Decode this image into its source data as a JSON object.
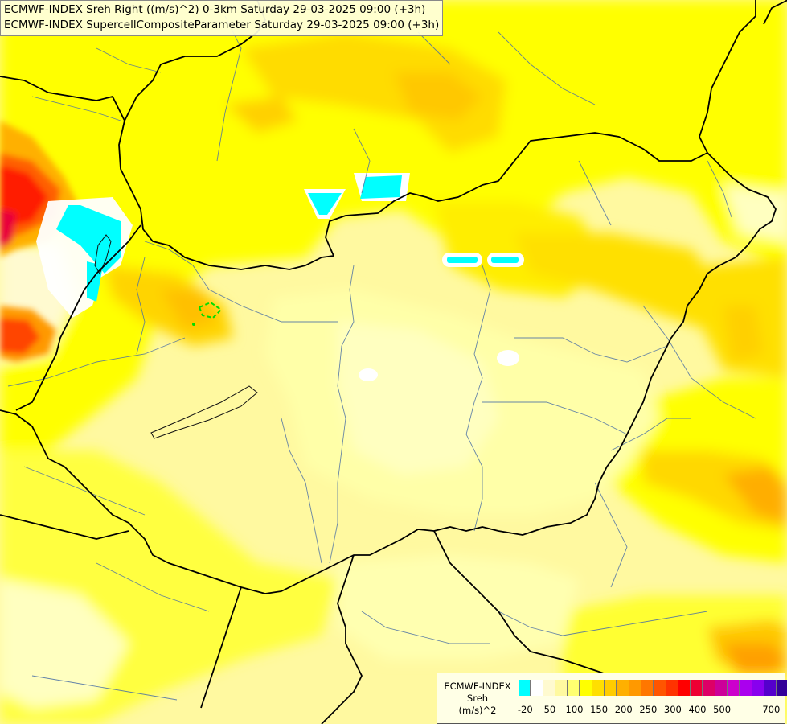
{
  "header": {
    "line1": "ECMWF-INDEX Sreh Right ((m/s)^2) 0-3km Saturday 29-03-2025 09:00 (+3h)",
    "line2": "ECMWF-INDEX SupercellCompositeParameter Saturday 29-03-2025 09:00 (+3h)"
  },
  "legend": {
    "title_line1": "ECMWF-INDEX",
    "title_line2": "Sreh",
    "title_line3": "(m/s)^2",
    "colors": [
      "#00ffff",
      "#ffffff",
      "#fffad0",
      "#fff9a0",
      "#ffff70",
      "#ffff00",
      "#ffdf00",
      "#ffcc00",
      "#ffb000",
      "#ff9900",
      "#ff7700",
      "#ff5500",
      "#ff3300",
      "#ff0000",
      "#ee0033",
      "#dd0066",
      "#cc0099",
      "#cc00cc",
      "#aa00ee",
      "#8800ee",
      "#5500cc",
      "#330099",
      "#220077"
    ],
    "ticks": [
      "-20",
      "50",
      "100",
      "150",
      "200",
      "250",
      "300",
      "400",
      "500",
      "700"
    ]
  },
  "map": {
    "background_color": "#fff9a0",
    "border_color": "#000000",
    "river_color": "#4a6fa5",
    "scp_contour_color": "#00dd00"
  }
}
